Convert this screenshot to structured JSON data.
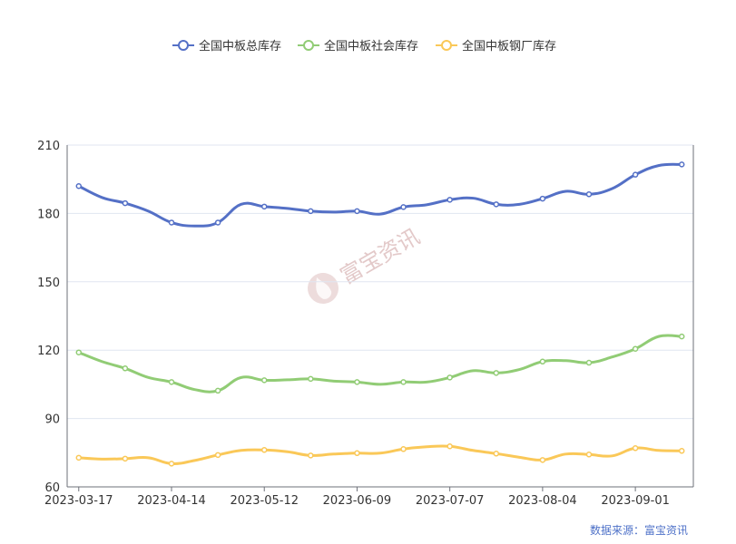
{
  "legend": {
    "items": [
      {
        "label": "全国中板总库存",
        "color": "#5470c6"
      },
      {
        "label": "全国中板社会库存",
        "color": "#91cc75"
      },
      {
        "label": "全国中板钢厂库存",
        "color": "#fac858"
      }
    ]
  },
  "watermark": {
    "text": "富宝资讯",
    "icon": "fubao-logo-icon"
  },
  "source": {
    "text": "数据来源：富宝资讯"
  },
  "chart_data": {
    "type": "line",
    "x": [
      "2023-03-17",
      "2023-03-24",
      "2023-03-31",
      "2023-04-07",
      "2023-04-14",
      "2023-04-21",
      "2023-04-28",
      "2023-05-05",
      "2023-05-12",
      "2023-05-19",
      "2023-05-26",
      "2023-06-02",
      "2023-06-09",
      "2023-06-16",
      "2023-06-23",
      "2023-06-30",
      "2023-07-07",
      "2023-07-14",
      "2023-07-21",
      "2023-07-28",
      "2023-08-04",
      "2023-08-11",
      "2023-08-18",
      "2023-08-25",
      "2023-09-01",
      "2023-09-08",
      "2023-09-15"
    ],
    "x_tick_labels": [
      "2023-03-17",
      "2023-04-14",
      "2023-05-12",
      "2023-06-09",
      "2023-07-07",
      "2023-08-04",
      "2023-09-01"
    ],
    "ylim": [
      60,
      210
    ],
    "y_ticks": [
      60,
      90,
      120,
      150,
      180,
      210
    ],
    "grid": true,
    "legend_position": "top-center",
    "series": [
      {
        "name": "全国中板总库存",
        "color": "#5470c6",
        "values": [
          192,
          187,
          184.5,
          181,
          176,
          174.5,
          176,
          184,
          183,
          182.2,
          181,
          180.6,
          181,
          179.7,
          182.8,
          183.8,
          186,
          186.7,
          184,
          184,
          186.5,
          189.7,
          188.4,
          190.9,
          197,
          201,
          201.5
        ]
      },
      {
        "name": "全国中板社会库存",
        "color": "#91cc75",
        "values": [
          119,
          115,
          112,
          108,
          106,
          102.7,
          102.2,
          108,
          106.8,
          107,
          107.4,
          106.4,
          106,
          105,
          106,
          106,
          108,
          111,
          110,
          111.5,
          115,
          115.4,
          114.5,
          117,
          120.6,
          126,
          126
        ]
      },
      {
        "name": "全国中板钢厂库存",
        "color": "#fac858",
        "values": [
          72.8,
          72.2,
          72.4,
          72.8,
          70.2,
          71.6,
          74,
          76,
          76.2,
          75.4,
          73.8,
          74.4,
          74.8,
          74.8,
          76.6,
          77.6,
          77.8,
          76,
          74.6,
          73,
          71.8,
          74.4,
          74.2,
          73.6,
          77,
          76,
          75.8
        ]
      }
    ]
  }
}
